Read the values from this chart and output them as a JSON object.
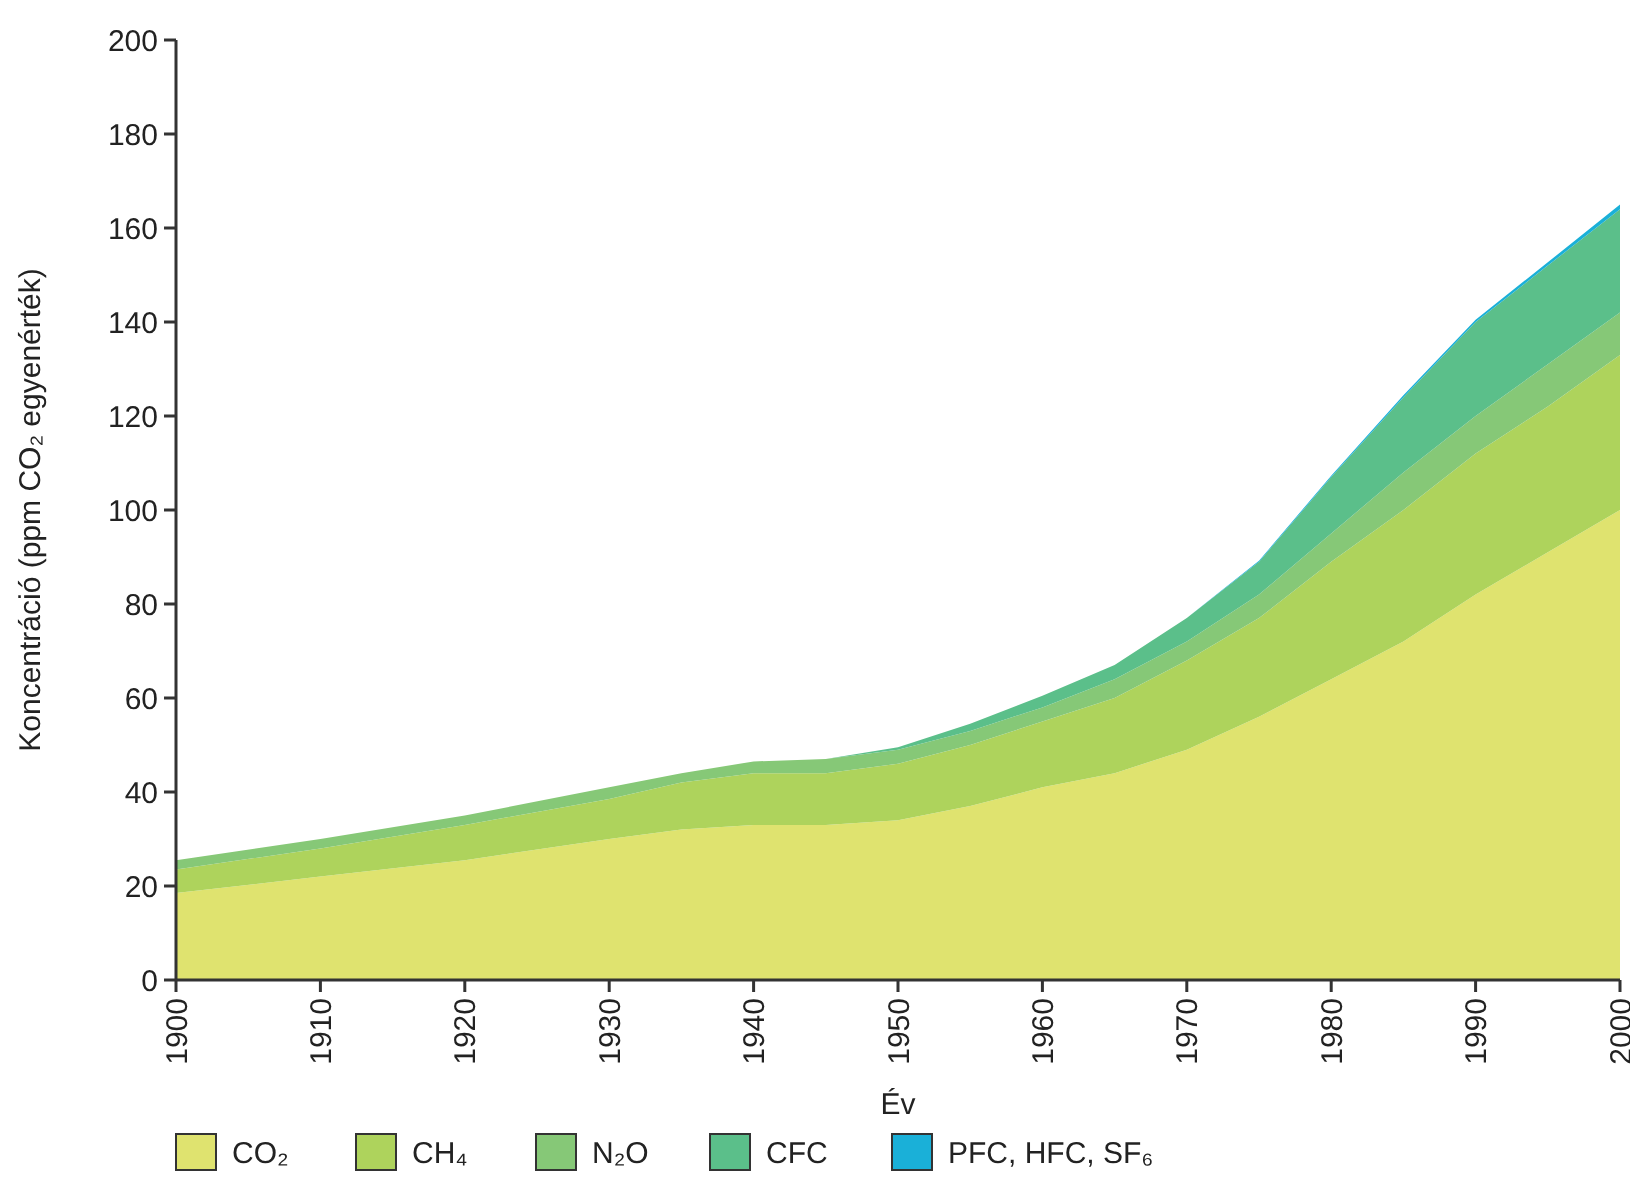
{
  "chart_data": {
    "type": "area",
    "stacked": true,
    "xlabel": "Év",
    "ylabel": "Koncentráció (ppm CO₂ egyenérték)",
    "x": [
      1900,
      1910,
      1920,
      1930,
      1935,
      1940,
      1945,
      1950,
      1955,
      1960,
      1965,
      1970,
      1975,
      1980,
      1985,
      1990,
      1995,
      2000
    ],
    "series": [
      {
        "name": "CO₂",
        "color": "#dfe36f",
        "values": [
          18.5,
          22,
          25.5,
          30,
          32,
          33,
          33,
          34,
          37,
          41,
          44,
          49,
          56,
          64,
          72,
          82,
          91,
          100
        ]
      },
      {
        "name": "CH₄",
        "color": "#aed35c",
        "values": [
          5,
          6,
          7.5,
          8.5,
          10,
          11,
          11,
          12,
          13,
          14,
          16,
          19,
          21,
          25,
          28,
          30,
          31,
          33
        ]
      },
      {
        "name": "N₂O",
        "color": "#86c877",
        "values": [
          2,
          2,
          2,
          2.5,
          2,
          2.5,
          3,
          3,
          3,
          3,
          4,
          4,
          5,
          6,
          8,
          8,
          9,
          9
        ]
      },
      {
        "name": "CFC",
        "color": "#5bbf8a",
        "values": [
          0,
          0,
          0,
          0,
          0,
          0,
          0,
          0.5,
          1.5,
          2.5,
          3,
          5,
          7,
          12,
          16,
          20,
          21,
          22
        ]
      },
      {
        "name": "PFC, HFC, SF₆",
        "color": "#1ab0d8",
        "values": [
          0,
          0,
          0,
          0,
          0,
          0,
          0,
          0,
          0,
          0,
          0,
          0,
          0.2,
          0.3,
          0.4,
          0.5,
          0.7,
          1
        ]
      }
    ],
    "xlim": [
      1900,
      2000
    ],
    "xticks": [
      1900,
      1910,
      1920,
      1930,
      1940,
      1950,
      1960,
      1970,
      1980,
      1990,
      2000
    ],
    "ylim": [
      0,
      200
    ],
    "yticks": [
      0,
      20,
      40,
      60,
      80,
      100,
      120,
      140,
      160,
      180,
      200
    ],
    "grid": false,
    "legend": "bottom"
  }
}
